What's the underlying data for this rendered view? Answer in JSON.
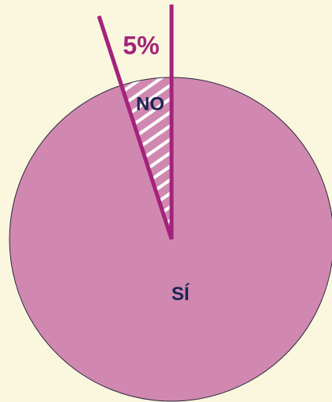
{
  "chart_data": {
    "type": "pie",
    "categories": [
      "NO",
      "SÍ"
    ],
    "values": [
      5,
      95
    ],
    "value_labels": [
      "5%",
      null
    ],
    "colors": [
      "#d088b0",
      "#d088b0"
    ],
    "hatched": [
      true,
      false
    ],
    "edge_color": "#a3237a",
    "label_color": "#1b2452",
    "value_label_color": "#a3237a"
  }
}
